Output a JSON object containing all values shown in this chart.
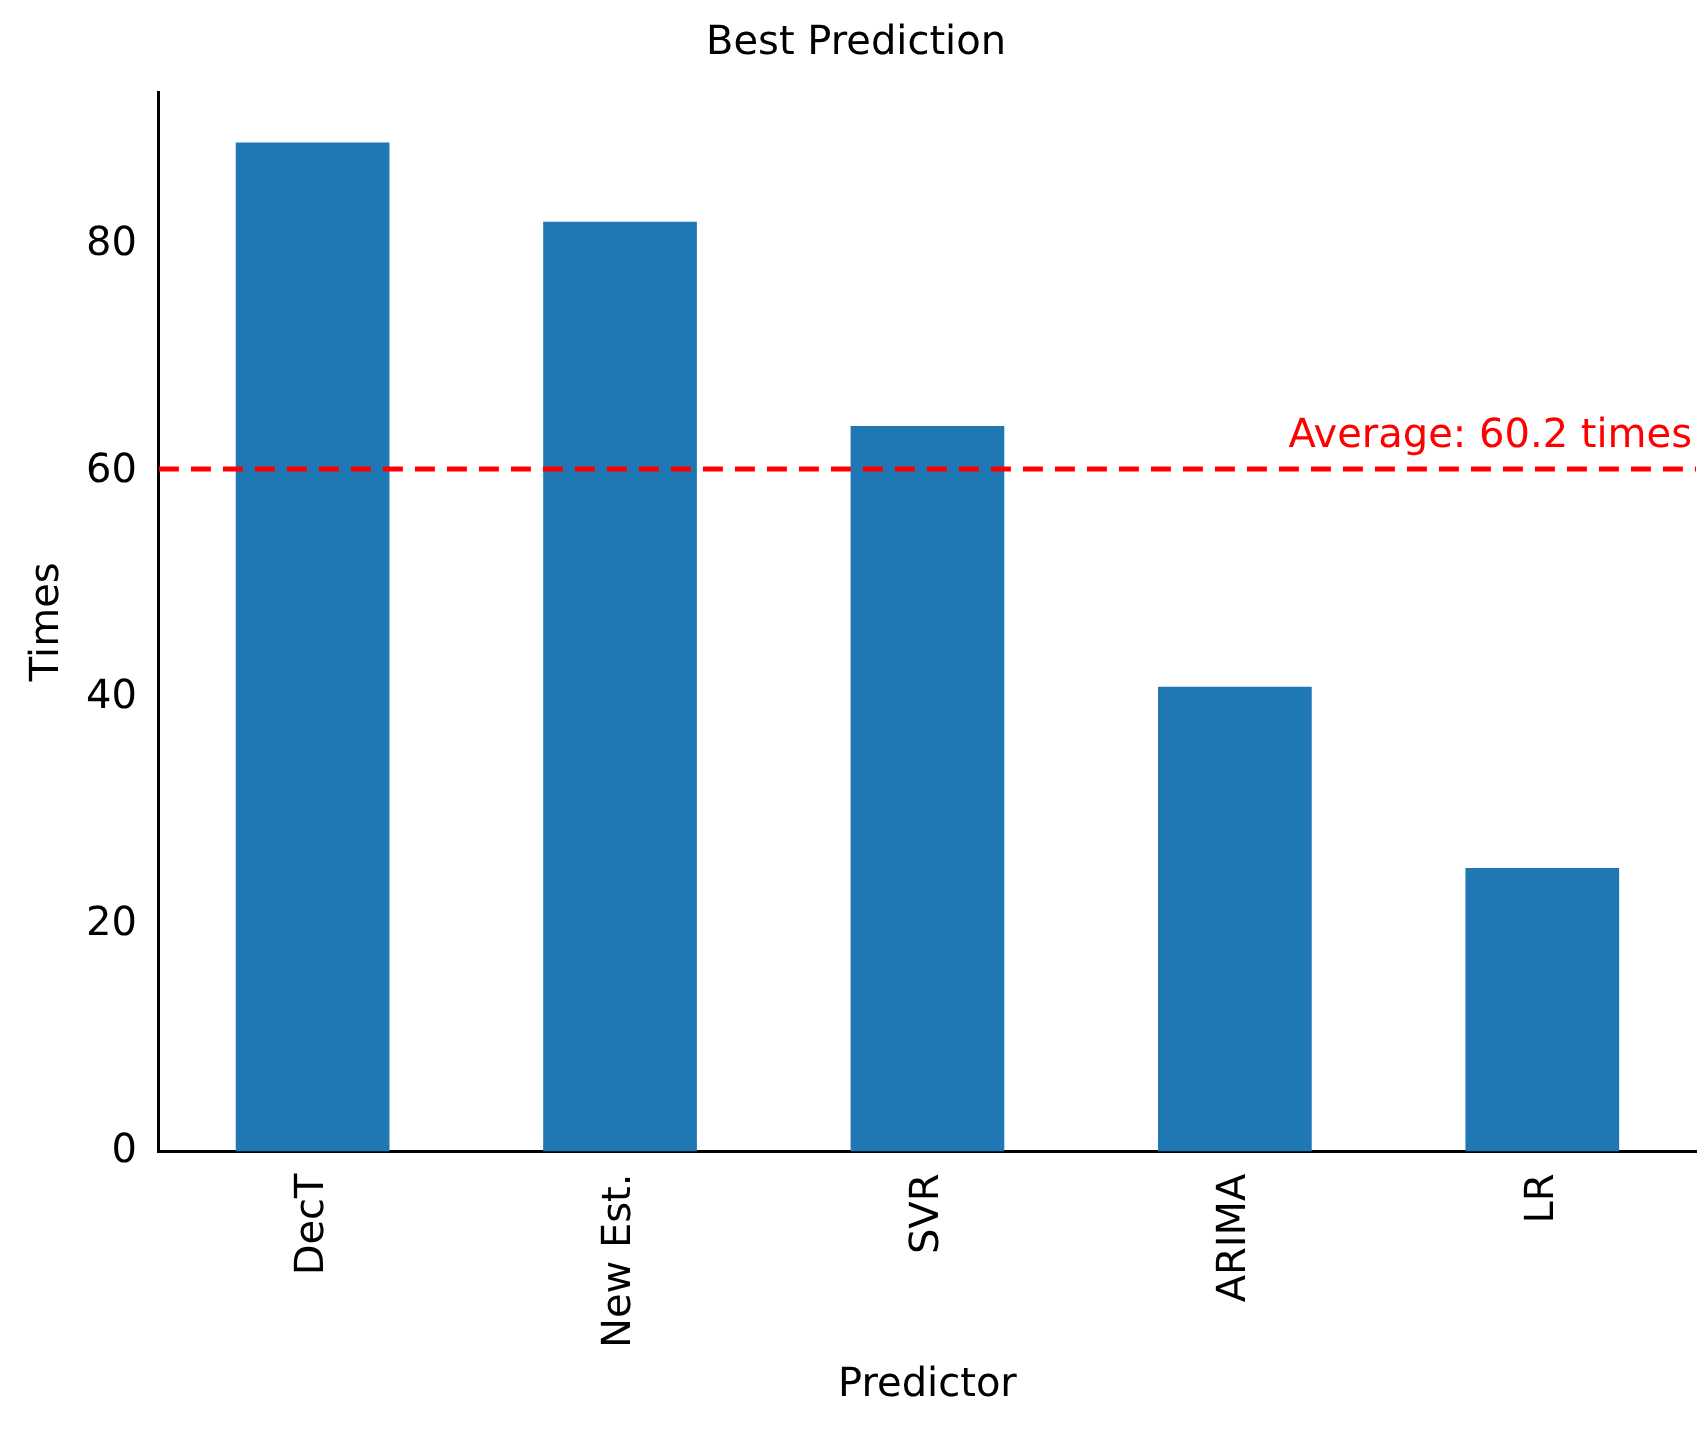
{
  "chart_data": {
    "type": "bar",
    "title": "Best Prediction",
    "xlabel": "Predictor",
    "ylabel": "Times",
    "categories": [
      "DecT",
      "New Est.",
      "SVR",
      "ARIMA",
      "LR"
    ],
    "values": [
      89,
      82,
      64,
      41,
      25
    ],
    "color": "#1f77b4",
    "ylim": [
      0,
      93.45
    ],
    "yticks": [
      0,
      20,
      40,
      60,
      80
    ],
    "grid": false,
    "legend": false,
    "ref_lines": [
      {
        "axis": "y",
        "value": 60.2,
        "label": "Average: 60.2 times",
        "color": "#ff0000",
        "line_style": "dashed"
      }
    ]
  }
}
